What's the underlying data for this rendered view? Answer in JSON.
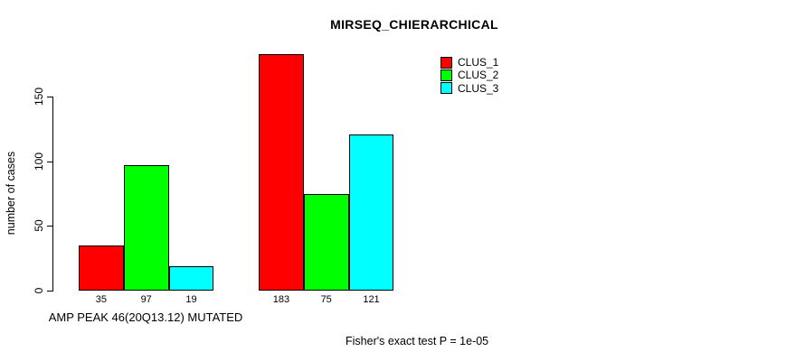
{
  "chart_data": {
    "type": "bar",
    "title": "MIRSEQ_CHIERARCHICAL",
    "ylabel": "number of cases",
    "xlabel": "AMP PEAK 46(20Q13.12) MUTATED",
    "footnote": "Fisher's exact test P = 1e-05",
    "yticks": [
      0,
      50,
      100,
      150
    ],
    "ylim": [
      0,
      183
    ],
    "grid": false,
    "legend_position": "top-right",
    "legend": [
      {
        "label": "CLUS_1",
        "color": "#FF0000"
      },
      {
        "label": "CLUS_2",
        "color": "#00FF00"
      },
      {
        "label": "CLUS_3",
        "color": "#00FFFF"
      }
    ],
    "series": [
      {
        "name": "CLUS_1",
        "values": [
          35,
          183
        ]
      },
      {
        "name": "CLUS_2",
        "values": [
          97,
          75
        ]
      },
      {
        "name": "CLUS_3",
        "values": [
          19,
          121
        ]
      }
    ],
    "groups": [
      {
        "values": [
          35,
          97,
          19
        ]
      },
      {
        "values": [
          183,
          75,
          121
        ]
      }
    ],
    "bar_value_labels": [
      35,
      97,
      19,
      183,
      75,
      121
    ]
  }
}
